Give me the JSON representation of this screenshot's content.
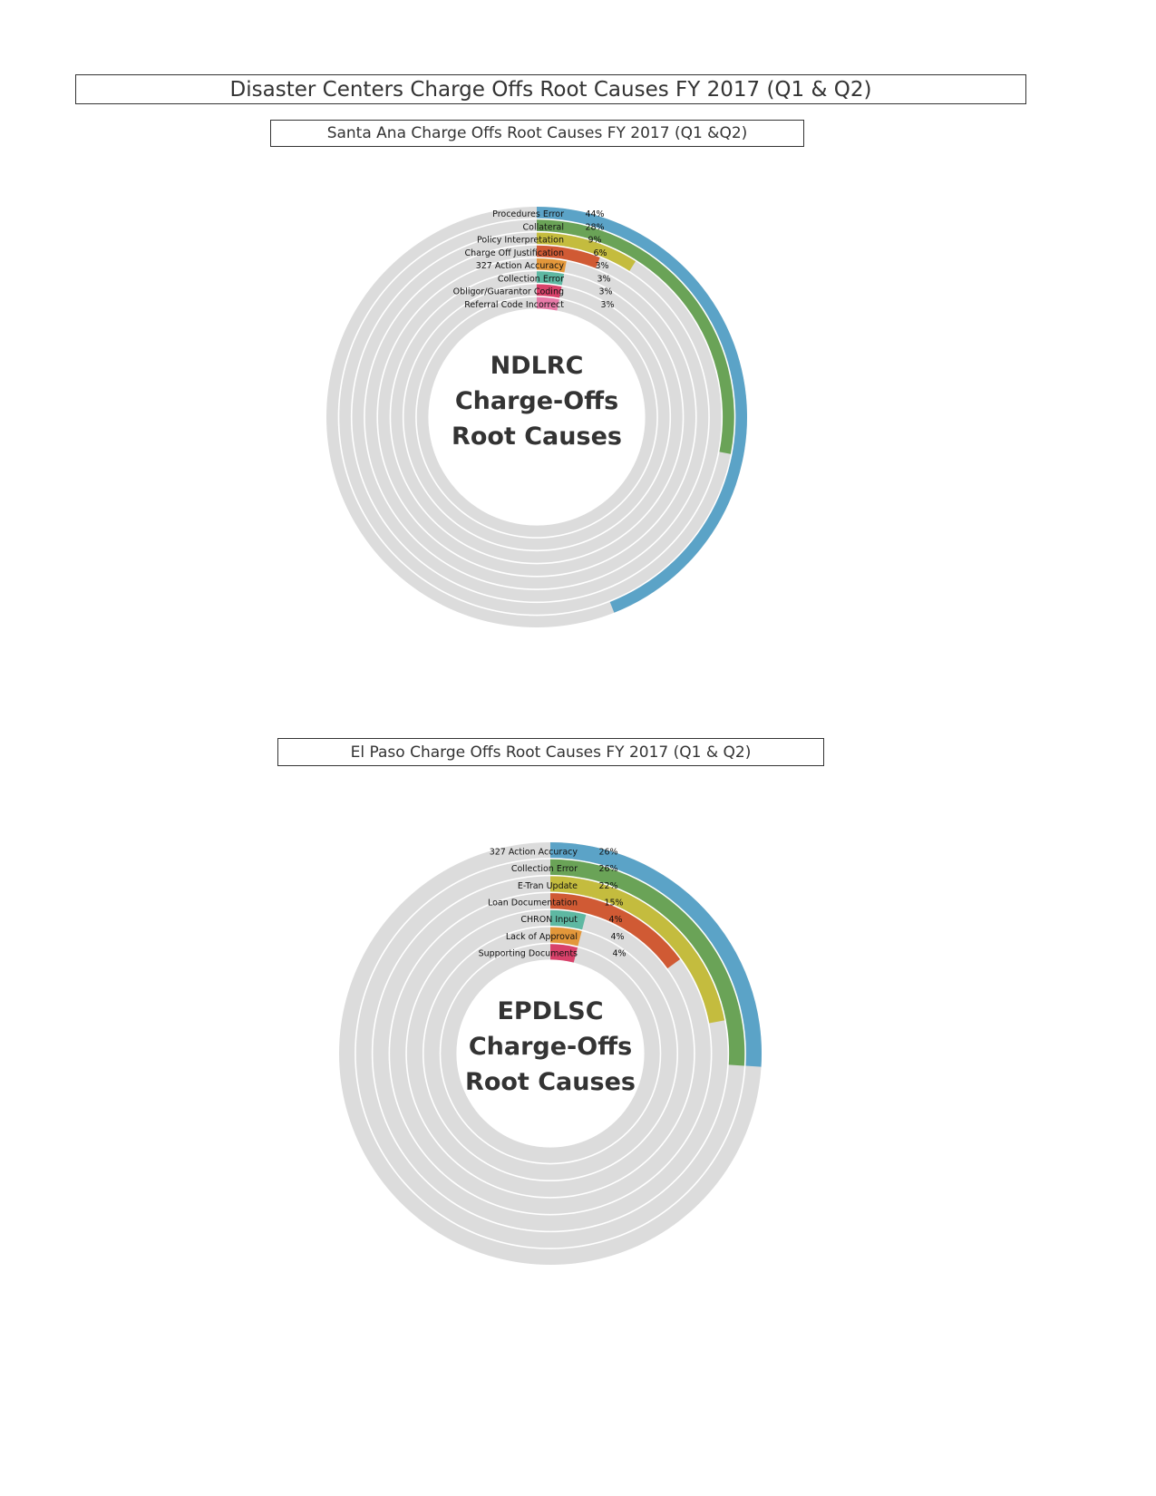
{
  "page_title": "Disaster Centers Charge Offs Root Causes FY 2017 (Q1 & Q2)",
  "chart_data": [
    {
      "type": "radial bar",
      "title": "Santa Ana Charge Offs Root Causes FY 2017 (Q1 &Q2)",
      "center_label": [
        "NDLRC",
        "Charge-Offs",
        "Root Causes"
      ],
      "value_unit": "%",
      "categories": [
        "Procedures Error",
        "Collateral",
        "Policy Interpretation",
        "Charge Off Justification",
        "327 Action Accuracy",
        "Collection Error",
        "Obligor/Guarantor Coding",
        "Referral Code Incorrect"
      ],
      "values": [
        44,
        28,
        9,
        6,
        3,
        3,
        3,
        3
      ],
      "value_labels": [
        "44%",
        "28%",
        "9%",
        "6%",
        "3%",
        "3%",
        "3%",
        "3%"
      ],
      "colors": [
        "#5ba3c7",
        "#6aa357",
        "#c4bc3e",
        "#d05a34",
        "#e3973a",
        "#5eb8a2",
        "#d8416a",
        "#e87aa8"
      ],
      "track_color": "#dcdcdc",
      "start": "top",
      "direction": "clockwise"
    },
    {
      "type": "radial bar",
      "title": "El Paso Charge Offs Root Causes FY 2017 (Q1 & Q2)",
      "center_label": [
        "EPDLSC",
        "Charge-Offs",
        "Root Causes"
      ],
      "value_unit": "%",
      "categories": [
        "327 Action Accuracy",
        "Collection Error",
        "E-Tran Update",
        "Loan Documentation",
        "CHRON Input",
        "Lack of Approval",
        "Supporting Documents"
      ],
      "values": [
        26,
        26,
        22,
        15,
        4,
        4,
        4
      ],
      "value_labels": [
        "26%",
        "26%",
        "22%",
        "15%",
        "4%",
        "4%",
        "4%"
      ],
      "colors": [
        "#5ba3c7",
        "#6aa357",
        "#c4bc3e",
        "#d05a34",
        "#5eb8a2",
        "#e3973a",
        "#d8416a"
      ],
      "track_color": "#dcdcdc",
      "start": "top",
      "direction": "clockwise"
    }
  ]
}
